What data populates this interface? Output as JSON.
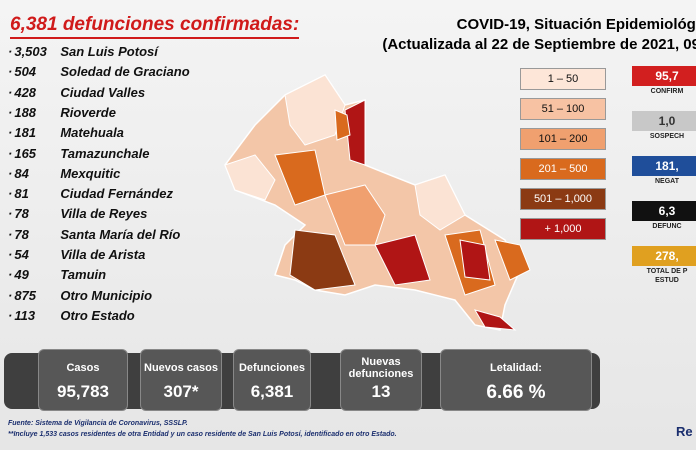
{
  "header": {
    "title": "6,381 defunciones confirmadas:",
    "report_title": "COVID-19, Situación Epidemiológi",
    "report_date": "(Actualizada al 22 de Septiembre de 2021, 09"
  },
  "deaths_list": [
    {
      "count": "3,503",
      "place": "San Luis Potosí"
    },
    {
      "count": "504",
      "place": "Soledad de Graciano"
    },
    {
      "count": "428",
      "place": "Ciudad Valles"
    },
    {
      "count": "188",
      "place": "Rioverde"
    },
    {
      "count": "181",
      "place": "Matehuala"
    },
    {
      "count": "165",
      "place": "Tamazunchale"
    },
    {
      "count": "84",
      "place": "Mexquitic"
    },
    {
      "count": "81",
      "place": "Ciudad Fernández"
    },
    {
      "count": "78",
      "place": "Villa de Reyes"
    },
    {
      "count": "78",
      "place": "Santa María del Río"
    },
    {
      "count": "54",
      "place": "Villa de Arista"
    },
    {
      "count": "49",
      "place": "Tamuin"
    },
    {
      "count": "875",
      "place": "Otro Municipio"
    },
    {
      "count": "113",
      "place": "Otro Estado"
    }
  ],
  "legend": [
    "1 – 50",
    "51 – 100",
    "101 – 200",
    "201 – 500",
    "501 – 1,000",
    "+ 1,000"
  ],
  "side_cards": [
    {
      "value": "95,7",
      "label": "CONFIRM"
    },
    {
      "value": "1,0",
      "label": "SOSPECH"
    },
    {
      "value": "181,",
      "label": "NEGAT"
    },
    {
      "value": "6,3",
      "label": "DEFUNC"
    },
    {
      "value": "278,",
      "label": "TOTAL DE P",
      "label2": "ESTUD"
    }
  ],
  "stats": [
    {
      "label": "Casos",
      "value": "95,783"
    },
    {
      "label": "Nuevos casos",
      "value": "307*"
    },
    {
      "label": "Defunciones",
      "value": "6,381"
    },
    {
      "label": "Nuevas defunciones",
      "value": "13"
    },
    {
      "label": "Letalidad:",
      "value": "6.66 %"
    }
  ],
  "footnotes": [
    "Fuente: Sistema de Vigilancia de Coronavirus, SSSLP.",
    "**Incluye 1,533 casos residentes de otra Entidad y un caso residente de San Luis Potosí, identificado en otro Estado."
  ],
  "corner": "Re"
}
